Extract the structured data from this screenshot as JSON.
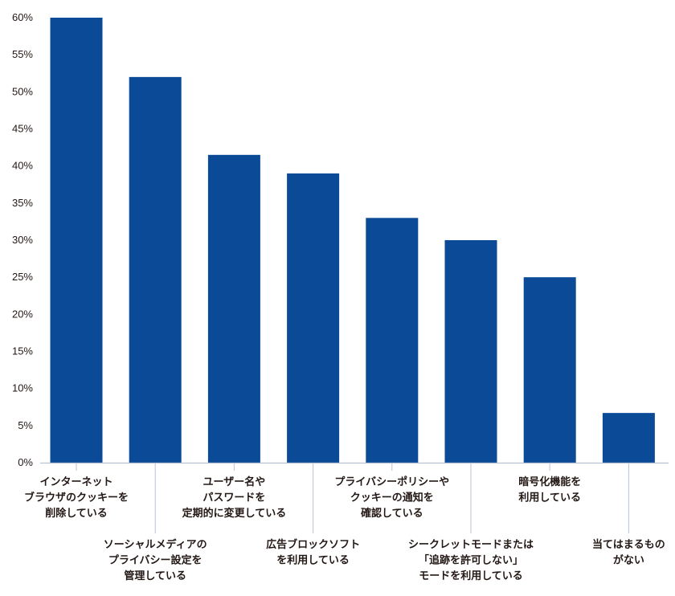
{
  "chart_data": {
    "type": "bar",
    "title": "",
    "xlabel": "",
    "ylabel": "",
    "ylim": [
      0,
      60
    ],
    "y_ticks": [
      "0%",
      "5%",
      "10%",
      "15%",
      "20%",
      "25%",
      "30%",
      "35%",
      "40%",
      "45%",
      "50%",
      "55%",
      "60%"
    ],
    "grid": false,
    "colors": {
      "bar": "#0b4a97",
      "axis": "#b9c3d1",
      "text": "#231815"
    },
    "categories": [
      [
        "インターネット",
        "ブラウザのクッキーを",
        "削除している"
      ],
      [
        "ソーシャルメディアの",
        "プライバシー設定を",
        "管理している"
      ],
      [
        "ユーザー名や",
        "パスワードを",
        "定期的に変更している"
      ],
      [
        "広告ブロックソフト",
        "を利用している"
      ],
      [
        "プライバシーポリシーや",
        "クッキーの通知を",
        "確認している"
      ],
      [
        "シークレットモードまたは",
        "「追跡を許可しない」",
        "モードを利用している"
      ],
      [
        "暗号化機能を",
        "利用している"
      ],
      [
        "当てはまるもの",
        "がない"
      ]
    ],
    "values": [
      60,
      52,
      41.5,
      39,
      33,
      30,
      25,
      6.7
    ]
  }
}
